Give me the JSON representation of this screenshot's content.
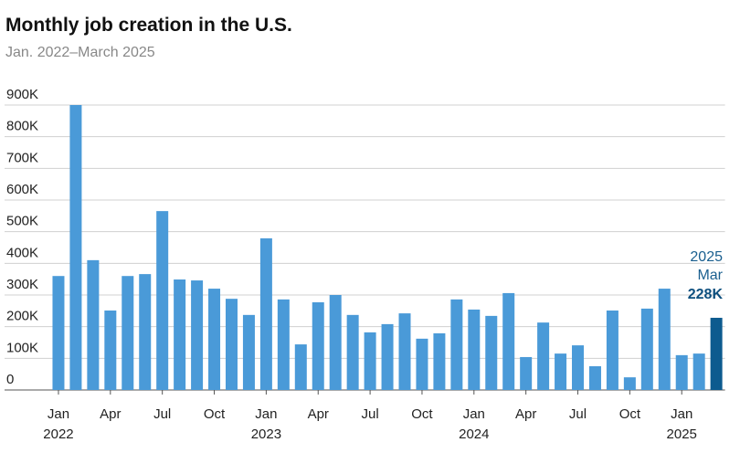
{
  "chart_data": {
    "type": "bar",
    "title": "Monthly job creation in the U.S.",
    "subtitle": "Jan. 2022–March 2025",
    "categories": [
      "Jan",
      null,
      null,
      "Apr",
      null,
      null,
      "Jul",
      null,
      null,
      "Oct",
      null,
      null,
      "Jan",
      null,
      null,
      "Apr",
      null,
      null,
      "Jul",
      null,
      null,
      "Oct",
      null,
      null,
      "Jan",
      null,
      null,
      "Apr",
      null,
      null,
      "Jul",
      null,
      null,
      "Oct",
      null,
      null,
      "Jan",
      null,
      null
    ],
    "year_labels": [
      "2022",
      null,
      null,
      null,
      null,
      null,
      null,
      null,
      null,
      null,
      null,
      null,
      "2023",
      null,
      null,
      null,
      null,
      null,
      null,
      null,
      null,
      null,
      null,
      null,
      "2024",
      null,
      null,
      null,
      null,
      null,
      null,
      null,
      null,
      null,
      null,
      null,
      "2025",
      null,
      null
    ],
    "values": [
      360,
      900,
      410,
      251,
      360,
      366,
      565,
      349,
      346,
      320,
      288,
      237,
      479,
      286,
      144,
      277,
      300,
      237,
      182,
      208,
      242,
      162,
      179,
      286,
      254,
      234,
      306,
      104,
      213,
      115,
      141,
      75,
      251,
      40,
      257,
      320,
      110,
      115,
      228
    ],
    "value_labels": [
      null,
      null,
      null,
      null,
      null,
      null,
      null,
      null,
      null,
      null,
      null,
      null,
      null,
      null,
      null,
      null,
      null,
      null,
      null,
      null,
      null,
      null,
      null,
      null,
      null,
      null,
      null,
      null,
      null,
      null,
      null,
      null,
      null,
      null,
      null,
      null,
      null,
      null,
      "228K"
    ],
    "annotations": [
      "2025",
      "Mar"
    ],
    "color": "#4a9ad8",
    "highlight_color": "#0d5b8f",
    "ylim": [
      0,
      900
    ],
    "yticks": [
      0,
      {
        "value": 100,
        "label": "100K"
      },
      {
        "value": 200,
        "label": "200K"
      },
      {
        "value": 300,
        "label": "300K"
      },
      {
        "value": 400,
        "label": "400K"
      },
      {
        "value": 500,
        "label": "500K"
      },
      {
        "value": 600,
        "label": "600K"
      },
      {
        "value": 700,
        "label": "700K"
      },
      {
        "value": 800,
        "label": "800K"
      },
      {
        "value": 900,
        "label": "900K"
      }
    ],
    "grid": true
  }
}
